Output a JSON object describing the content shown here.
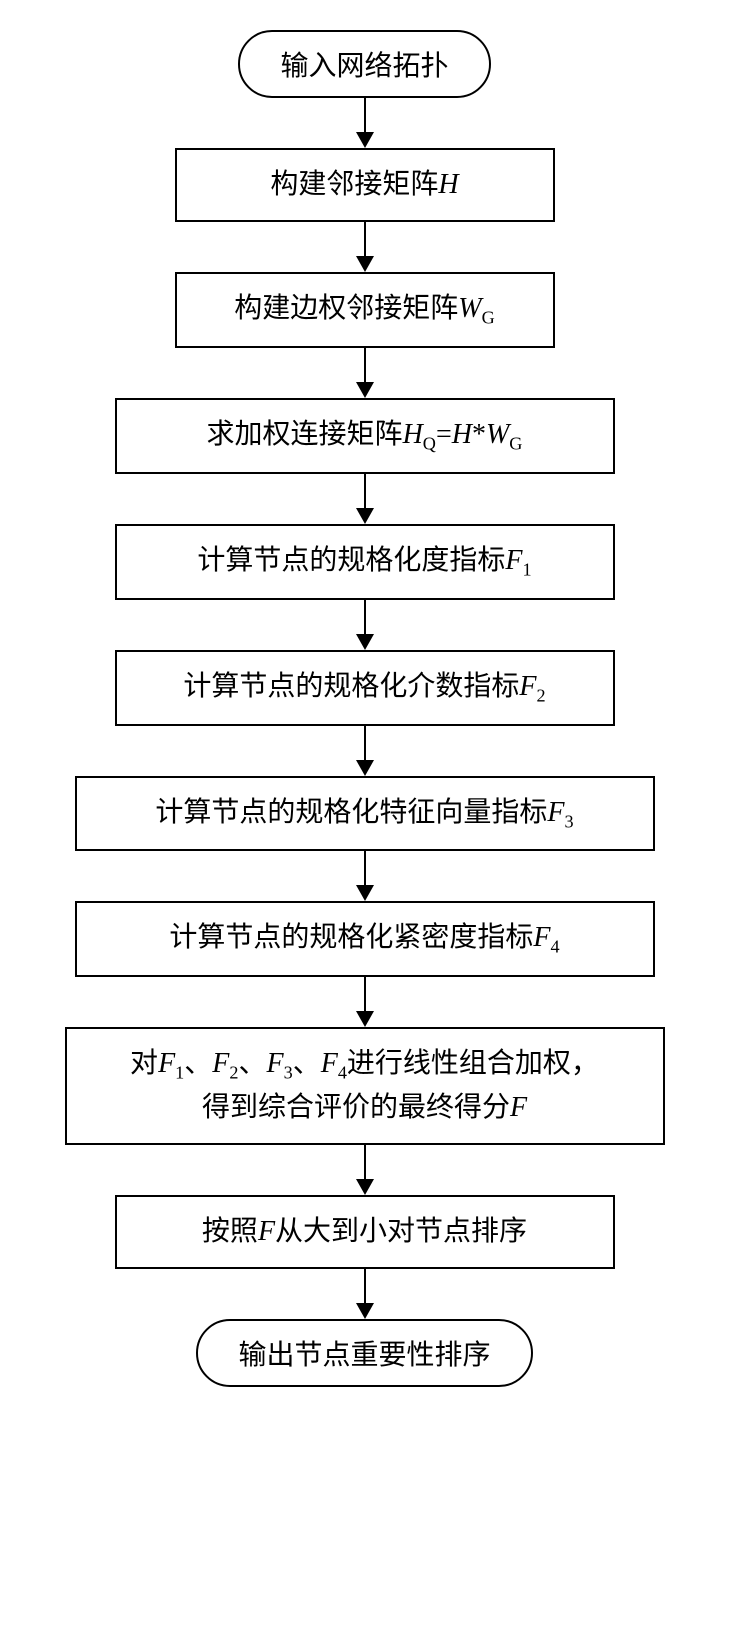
{
  "flowchart": {
    "type": "flowchart",
    "direction": "vertical",
    "background_color": "#ffffff",
    "border_color": "#000000",
    "border_width": 2,
    "text_color": "#000000",
    "font_size": 28,
    "font_family": "SimSun",
    "arrow_color": "#000000",
    "arrow_length": 50,
    "nodes": [
      {
        "id": "start",
        "shape": "terminal",
        "text_parts": [
          {
            "text": "输入网络拓扑",
            "style": "normal"
          }
        ]
      },
      {
        "id": "step1",
        "shape": "process",
        "width_class": "narrow",
        "text_parts": [
          {
            "text": "构建邻接矩阵",
            "style": "normal"
          },
          {
            "text": "H",
            "style": "italic"
          }
        ]
      },
      {
        "id": "step2",
        "shape": "process",
        "width_class": "narrow",
        "text_parts": [
          {
            "text": "构建边权邻接矩阵",
            "style": "normal"
          },
          {
            "text": "W",
            "style": "italic"
          },
          {
            "text": "G",
            "style": "sub"
          }
        ]
      },
      {
        "id": "step3",
        "shape": "process",
        "width_class": "medium",
        "text_parts": [
          {
            "text": "求加权连接矩阵",
            "style": "normal"
          },
          {
            "text": "H",
            "style": "italic"
          },
          {
            "text": "Q",
            "style": "sub"
          },
          {
            "text": "=",
            "style": "normal"
          },
          {
            "text": "H",
            "style": "italic"
          },
          {
            "text": "*",
            "style": "normal"
          },
          {
            "text": "W",
            "style": "italic"
          },
          {
            "text": "G",
            "style": "sub"
          }
        ]
      },
      {
        "id": "step4",
        "shape": "process",
        "width_class": "medium",
        "text_parts": [
          {
            "text": "计算节点的规格化度指标",
            "style": "normal"
          },
          {
            "text": "F",
            "style": "italic"
          },
          {
            "text": "1",
            "style": "sub"
          }
        ]
      },
      {
        "id": "step5",
        "shape": "process",
        "width_class": "medium",
        "text_parts": [
          {
            "text": "计算节点的规格化介数指标",
            "style": "normal"
          },
          {
            "text": "F",
            "style": "italic"
          },
          {
            "text": "2",
            "style": "sub"
          }
        ]
      },
      {
        "id": "step6",
        "shape": "process",
        "width_class": "wide",
        "text_parts": [
          {
            "text": "计算节点的规格化特征向量指标",
            "style": "normal"
          },
          {
            "text": "F",
            "style": "italic"
          },
          {
            "text": "3",
            "style": "sub"
          }
        ]
      },
      {
        "id": "step7",
        "shape": "process",
        "width_class": "wide",
        "text_parts": [
          {
            "text": "计算节点的规格化紧密度指标",
            "style": "normal"
          },
          {
            "text": "F",
            "style": "italic"
          },
          {
            "text": "4",
            "style": "sub"
          }
        ]
      },
      {
        "id": "step8",
        "shape": "process",
        "width_class": "xwide",
        "text_parts": [
          {
            "text": "对",
            "style": "normal"
          },
          {
            "text": "F",
            "style": "italic"
          },
          {
            "text": "1",
            "style": "sub"
          },
          {
            "text": "、",
            "style": "normal"
          },
          {
            "text": "F",
            "style": "italic"
          },
          {
            "text": "2",
            "style": "sub"
          },
          {
            "text": "、",
            "style": "normal"
          },
          {
            "text": "F",
            "style": "italic"
          },
          {
            "text": "3",
            "style": "sub"
          },
          {
            "text": "、",
            "style": "normal"
          },
          {
            "text": "F",
            "style": "italic"
          },
          {
            "text": "4",
            "style": "sub"
          },
          {
            "text": "进行线性组合加权，",
            "style": "normal"
          },
          {
            "text": "\n",
            "style": "break"
          },
          {
            "text": "得到综合评价的最终得分",
            "style": "normal"
          },
          {
            "text": "F",
            "style": "italic"
          }
        ]
      },
      {
        "id": "step9",
        "shape": "process",
        "width_class": "medium",
        "text_parts": [
          {
            "text": "按照",
            "style": "normal"
          },
          {
            "text": "F",
            "style": "italic"
          },
          {
            "text": "从大到小对节点排序",
            "style": "normal"
          }
        ]
      },
      {
        "id": "end",
        "shape": "terminal",
        "text_parts": [
          {
            "text": "输出节点重要性排序",
            "style": "normal"
          }
        ]
      }
    ],
    "edges": [
      {
        "from": "start",
        "to": "step1"
      },
      {
        "from": "step1",
        "to": "step2"
      },
      {
        "from": "step2",
        "to": "step3"
      },
      {
        "from": "step3",
        "to": "step4"
      },
      {
        "from": "step4",
        "to": "step5"
      },
      {
        "from": "step5",
        "to": "step6"
      },
      {
        "from": "step6",
        "to": "step7"
      },
      {
        "from": "step7",
        "to": "step8"
      },
      {
        "from": "step8",
        "to": "step9"
      },
      {
        "from": "step9",
        "to": "end"
      }
    ]
  }
}
